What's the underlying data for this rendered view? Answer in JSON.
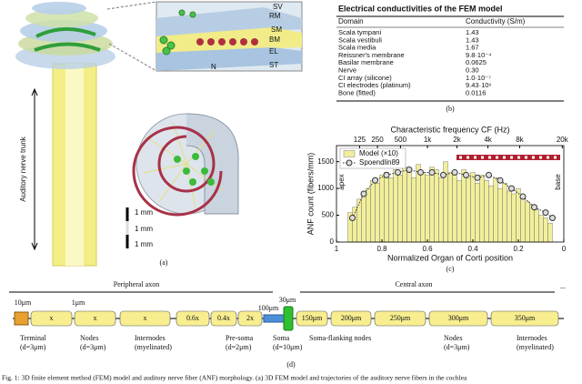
{
  "panel_a": {
    "inset_labels": [
      "SV",
      "RM",
      "SM",
      "BM",
      "EL",
      "ST",
      "N"
    ],
    "nerve_label": "Auditory nerve trunk",
    "scale_labels": [
      "1 mm",
      "1 mm",
      "1 mm"
    ],
    "caption": "(a)"
  },
  "table": {
    "title": "Electrical conductivities of the FEM model",
    "header": [
      "Domain",
      "Conductivity (S/m)"
    ],
    "rows": [
      [
        "Scala tympani",
        "1.43"
      ],
      [
        "Scala vestibuli",
        "1.43"
      ],
      [
        "Scala media",
        "1.67"
      ],
      [
        "Reissner's membrane",
        "9.8·10⁻⁴"
      ],
      [
        "Basilar membrane",
        "0.0625"
      ],
      [
        "Nerve",
        "0.30"
      ],
      [
        "CI array (silicone)",
        "1.0·10⁻⁷"
      ],
      [
        "CI electrodes (platinum)",
        "9.43·10⁶"
      ],
      [
        "Bone (fitted)",
        "0.0116"
      ]
    ],
    "caption": "(b)"
  },
  "chart_data": {
    "type": "histogram",
    "x_label": "Normalized Organ of Corti position",
    "y_label": "ANF count (fibers/mm)",
    "x2_label": "Characteristic frequency CF (Hz)",
    "bins": [
      0.95,
      0.93,
      0.91,
      0.89,
      0.87,
      0.85,
      0.83,
      0.81,
      0.79,
      0.77,
      0.75,
      0.73,
      0.71,
      0.69,
      0.67,
      0.65,
      0.63,
      0.61,
      0.59,
      0.57,
      0.55,
      0.53,
      0.51,
      0.49,
      0.47,
      0.45,
      0.43,
      0.41,
      0.39,
      0.37,
      0.35,
      0.33,
      0.31,
      0.29,
      0.27,
      0.25,
      0.23,
      0.21,
      0.19,
      0.17,
      0.15,
      0.13,
      0.11,
      0.09,
      0.07,
      0.05
    ],
    "series": [
      {
        "name": "Model (×10)",
        "color": "#f2ef9c",
        "values": [
          550,
          650,
          800,
          900,
          1000,
          1150,
          1100,
          1250,
          1300,
          1200,
          1350,
          1250,
          1400,
          1300,
          1200,
          1450,
          1300,
          1250,
          1400,
          1350,
          1200,
          1500,
          1300,
          1250,
          1150,
          1350,
          1200,
          1300,
          1100,
          1250,
          1150,
          1050,
          1200,
          1000,
          1100,
          950,
          900,
          1000,
          800,
          750,
          700,
          600,
          500,
          450,
          350
        ]
      },
      {
        "name": "Spoendlin89",
        "type": "line",
        "color": "#333333",
        "x": [
          0.93,
          0.88,
          0.83,
          0.78,
          0.73,
          0.68,
          0.63,
          0.58,
          0.53,
          0.48,
          0.43,
          0.38,
          0.33,
          0.28,
          0.23,
          0.18,
          0.13,
          0.08,
          0.05
        ],
        "values": [
          450,
          900,
          1150,
          1250,
          1300,
          1350,
          1300,
          1300,
          1250,
          1300,
          1250,
          1200,
          1250,
          1150,
          1000,
          850,
          650,
          550,
          450
        ]
      }
    ],
    "xlim": [
      1,
      0
    ],
    "xticks": [
      1,
      0.8,
      0.6,
      0.4,
      0.2,
      0
    ],
    "ylim": [
      0,
      1800
    ],
    "yticks": [
      0,
      500,
      1000,
      1500
    ],
    "x2ticks": [
      125,
      250,
      500,
      {
        "value": 1000,
        "label": "1k"
      },
      {
        "value": 2000,
        "label": "2k"
      },
      {
        "value": 4000,
        "label": "4k"
      },
      {
        "value": 8000,
        "label": "8k"
      },
      {
        "value": 20000,
        "label": "20k"
      }
    ],
    "annotations": [
      "apex",
      "base"
    ],
    "legend": "upper left",
    "caption": "(c)"
  },
  "axon": {
    "peripheral": "Peripheral axon",
    "central": "Central axon",
    "ellipsis": "...",
    "top_labels": [
      "10μm",
      "1μm",
      "100μm",
      "30μm"
    ],
    "segments": [
      "x",
      "x",
      "x",
      "0.6x",
      "0.4x",
      "2x",
      "150μm",
      "200μm",
      "250μm",
      "300μm",
      "350μm"
    ],
    "bottom_labels": [
      "Terminal",
      "(d=3μm)",
      "Nodes",
      "(d=3μm)",
      "Internodes",
      "(myelinated)",
      "Pre-soma",
      "(d=2μm)",
      "Soma",
      "(d=10μm)",
      "Soma-flanking nodes",
      "Nodes",
      "(d=3μm)",
      "Internodes",
      "(myelinated)"
    ],
    "caption": "(d)"
  },
  "figure_caption": "Fig. 1: 3D finite element method (FEM) model and auditory nerve fiber (ANF) morphology. (a) 3D FEM model and trajectories of the auditory nerve fibers in the cochlea"
}
